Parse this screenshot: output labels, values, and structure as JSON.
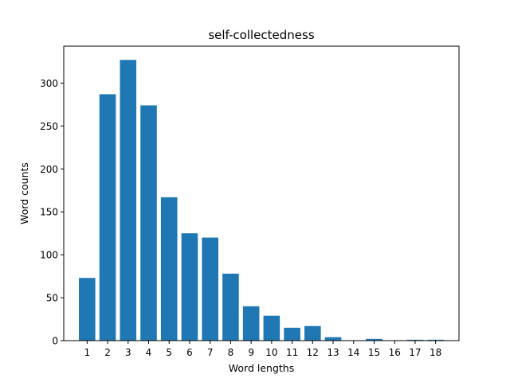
{
  "chart_data": {
    "type": "bar",
    "title": "self-collectedness",
    "xlabel": "Word lengths",
    "ylabel": "Word counts",
    "categories": [
      "1",
      "2",
      "3",
      "4",
      "5",
      "6",
      "7",
      "8",
      "9",
      "10",
      "11",
      "12",
      "13",
      "14",
      "15",
      "16",
      "17",
      "18"
    ],
    "values": [
      73,
      287,
      327,
      274,
      167,
      125,
      120,
      78,
      40,
      29,
      15,
      17,
      4,
      0,
      2,
      0,
      1,
      1
    ],
    "yticks": [
      0,
      50,
      100,
      150,
      200,
      250,
      300
    ],
    "ylim": [
      0,
      343
    ],
    "grid": false,
    "bar_color": "#1f77b4"
  }
}
